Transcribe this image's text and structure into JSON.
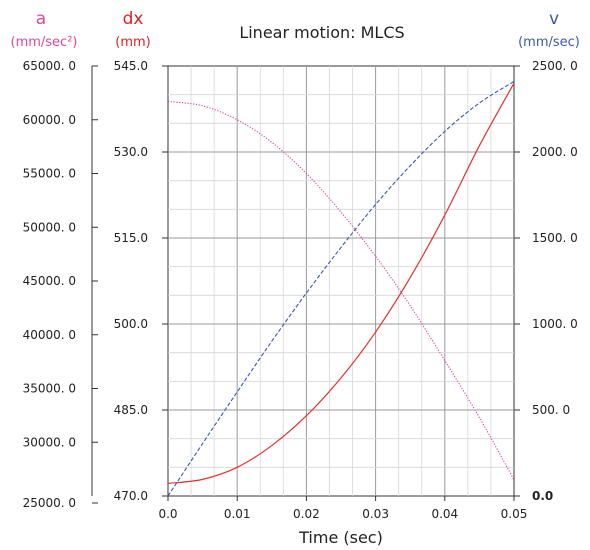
{
  "chart_data": {
    "type": "line",
    "title": "Linear motion: MLCS",
    "xlabel": "Time (sec)",
    "xlim": [
      0.0,
      0.05
    ],
    "x_ticks": [
      "0.0",
      "0.01",
      "0.02",
      "0.03",
      "0.04",
      "0.05"
    ],
    "grid": true,
    "axes": {
      "a": {
        "label": "a",
        "unit": "(mm/sec²)",
        "color": "#e0489a",
        "ylim": [
          25000,
          65000
        ],
        "ticks": [
          "25000. 0",
          "30000. 0",
          "35000. 0",
          "40000. 0",
          "45000. 0",
          "50000. 0",
          "55000. 0",
          "60000. 0",
          "65000. 0"
        ]
      },
      "dx": {
        "label": "dx",
        "unit": "(mm)",
        "color": "#e02020",
        "ylim": [
          470,
          545
        ],
        "ticks": [
          "470.0",
          "485.0",
          "500.0",
          "515.0",
          "530.0",
          "545.0"
        ]
      },
      "v": {
        "label": "v",
        "unit": "(mm/sec)",
        "color": "#3a5aa8",
        "ylim": [
          0,
          2500
        ],
        "ticks": [
          "0.0",
          "500. 0",
          "1000. 0",
          "1500. 0",
          "2000. 0",
          "2500. 0"
        ]
      }
    },
    "series": [
      {
        "axis": "dx",
        "style": "solid",
        "color": "#e53030",
        "x": [
          0.0,
          0.005,
          0.01,
          0.015,
          0.02,
          0.025,
          0.03,
          0.035,
          0.04,
          0.045,
          0.05
        ],
        "y": [
          472.2,
          472.9,
          475.0,
          478.8,
          484.0,
          490.6,
          498.6,
          508.1,
          519.0,
          531.1,
          542.0
        ]
      },
      {
        "axis": "v",
        "style": "dashed",
        "color": "#3a5aa8",
        "x": [
          0.0,
          0.005,
          0.01,
          0.015,
          0.02,
          0.025,
          0.03,
          0.035,
          0.04,
          0.045,
          0.05
        ],
        "y": [
          0,
          305,
          605,
          900,
          1180,
          1445,
          1695,
          1920,
          2120,
          2285,
          2410
        ]
      },
      {
        "axis": "a",
        "style": "dotted",
        "color": "#d9409a",
        "x": [
          0.0,
          0.005,
          0.01,
          0.015,
          0.02,
          0.025,
          0.03,
          0.035,
          0.04,
          0.045,
          0.05
        ],
        "y": [
          61700,
          61300,
          60000,
          57900,
          55000,
          51400,
          47300,
          42700,
          37600,
          32300,
          26500
        ]
      }
    ]
  }
}
